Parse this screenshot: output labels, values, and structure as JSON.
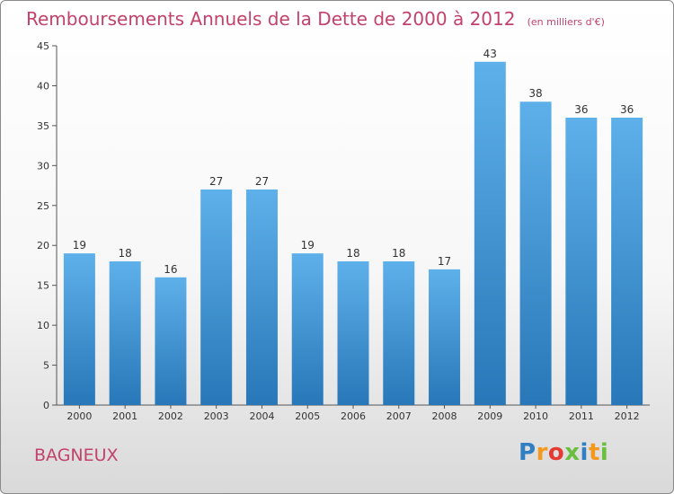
{
  "chart_data": {
    "type": "bar",
    "title": "Remboursements Annuels de la Dette de 2000 à 2012",
    "subtitle": "(en milliers d'€)",
    "categories": [
      "2000",
      "2001",
      "2002",
      "2003",
      "2004",
      "2005",
      "2006",
      "2007",
      "2008",
      "2009",
      "2010",
      "2011",
      "2012"
    ],
    "values": [
      19,
      18,
      16,
      27,
      27,
      19,
      18,
      18,
      17,
      43,
      38,
      36,
      36
    ],
    "ylim": [
      0,
      45
    ],
    "yticks": [
      0,
      5,
      10,
      15,
      20,
      25,
      30,
      35,
      40,
      45
    ],
    "grid": false,
    "colors": {
      "bar_top": "#5eb0ea",
      "bar_bottom": "#2877b8",
      "title": "#c2426b"
    }
  },
  "footer": {
    "city": "BAGNEUX",
    "brand_letters": [
      "P",
      "r",
      "o",
      "x",
      "i",
      "t",
      "i"
    ],
    "brand_colors": [
      "#2f7fc2",
      "#f39a1e",
      "#e53a32",
      "#6abf3f",
      "#2f7fc2",
      "#f39a1e",
      "#6abf3f"
    ]
  }
}
